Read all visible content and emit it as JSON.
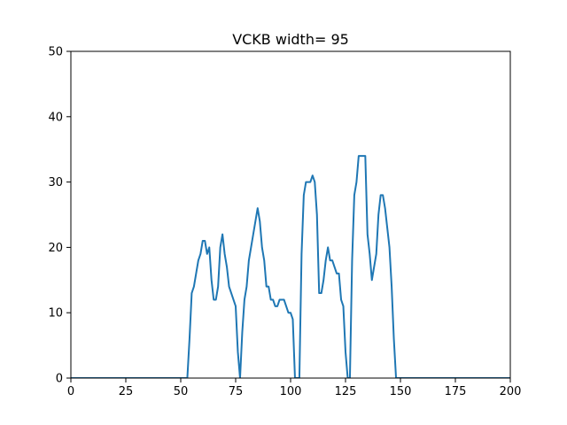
{
  "chart_data": {
    "type": "line",
    "title": "VCKB width= 95",
    "xlabel": "",
    "ylabel": "",
    "xlim": [
      0,
      200
    ],
    "ylim": [
      0,
      50
    ],
    "xticks": [
      0,
      25,
      50,
      75,
      100,
      125,
      150,
      175,
      200
    ],
    "yticks": [
      0,
      10,
      20,
      30,
      40,
      50
    ],
    "xtick_labels": [
      "0",
      "25",
      "50",
      "75",
      "100",
      "125",
      "150",
      "175",
      "200"
    ],
    "ytick_labels": [
      "0",
      "10",
      "20",
      "30",
      "40",
      "50"
    ],
    "grid": false,
    "line_color": "#1f77b4",
    "series": [
      {
        "x": [
          0,
          53,
          54,
          55,
          56,
          57,
          58,
          59,
          60,
          61,
          62,
          63,
          64,
          65,
          66,
          67,
          68,
          69,
          70,
          71,
          72,
          73,
          74,
          75,
          76,
          77,
          78,
          79,
          80,
          81,
          82,
          83,
          84,
          85,
          86,
          87,
          88,
          89,
          90,
          91,
          92,
          93,
          94,
          95,
          96,
          97,
          98,
          99,
          100,
          101,
          102,
          103,
          104,
          105,
          106,
          107,
          108,
          109,
          110,
          111,
          112,
          113,
          114,
          115,
          116,
          117,
          118,
          119,
          120,
          121,
          122,
          123,
          124,
          125,
          126,
          127,
          128,
          129,
          130,
          131,
          132,
          133,
          134,
          135,
          136,
          137,
          138,
          139,
          140,
          141,
          142,
          143,
          144,
          145,
          146,
          147,
          148,
          200
        ],
        "y": [
          0,
          0,
          6,
          13,
          14,
          16,
          18,
          19,
          21,
          21,
          19,
          20,
          15,
          12,
          12,
          14,
          20,
          22,
          19,
          17,
          14,
          13,
          12,
          11,
          4,
          0,
          7,
          12,
          14,
          18,
          20,
          22,
          24,
          26,
          24,
          20,
          18,
          14,
          14,
          12,
          12,
          11,
          11,
          12,
          12,
          12,
          11,
          10,
          10,
          9,
          0,
          0,
          0,
          19,
          28,
          30,
          30,
          30,
          31,
          30,
          25,
          13,
          13,
          15,
          18,
          20,
          18,
          18,
          17,
          16,
          16,
          12,
          11,
          4,
          0,
          0,
          18,
          28,
          30,
          34,
          34,
          34,
          34,
          22,
          19,
          15,
          17,
          19,
          25,
          28,
          28,
          26,
          23,
          20,
          14,
          6,
          0,
          0
        ]
      }
    ]
  }
}
